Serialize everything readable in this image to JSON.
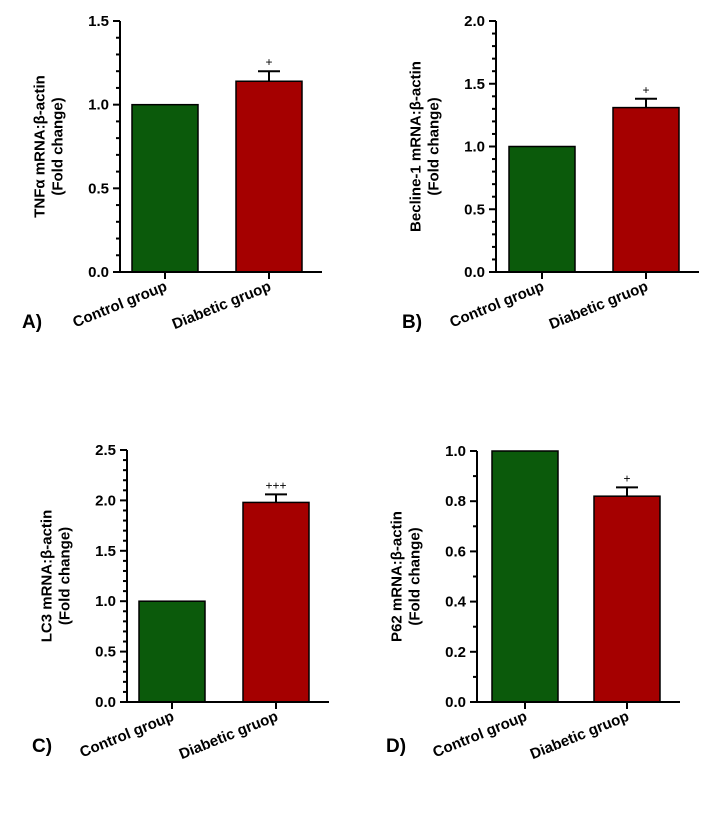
{
  "chart_data": [
    {
      "type": "bar",
      "panel": "A)",
      "categories": [
        "Control group",
        "Diabetic gruop"
      ],
      "values": [
        1.0,
        1.14
      ],
      "errors": [
        0,
        0.06
      ],
      "significance": [
        "",
        "+"
      ],
      "ylabel_line1": "TNFα mRNA:β-actin",
      "ylabel_line2": "(Fold change)",
      "ylim": [
        0,
        1.5
      ],
      "yticks": [
        0.0,
        0.5,
        1.0,
        1.5
      ],
      "ytick_labels": [
        "0.0",
        "0.5",
        "1.0",
        "1.5"
      ],
      "minor_per_major": 5,
      "colors": [
        "#0b5a0b",
        "#a50000"
      ]
    },
    {
      "type": "bar",
      "panel": "B)",
      "categories": [
        "Control group",
        "Diabetic gruop"
      ],
      "values": [
        1.0,
        1.31
      ],
      "errors": [
        0,
        0.07
      ],
      "significance": [
        "",
        "+"
      ],
      "ylabel_line1": "Becline-1 mRNA:β-actin",
      "ylabel_line2": "(Fold change)",
      "ylim": [
        0,
        2.0
      ],
      "yticks": [
        0.0,
        0.5,
        1.0,
        1.5,
        2.0
      ],
      "ytick_labels": [
        "0.0",
        "0.5",
        "1.0",
        "1.5",
        "2.0"
      ],
      "minor_per_major": 5,
      "colors": [
        "#0b5a0b",
        "#a50000"
      ]
    },
    {
      "type": "bar",
      "panel": "C)",
      "categories": [
        "Control group",
        "Diabetic gruop"
      ],
      "values": [
        1.0,
        1.98
      ],
      "errors": [
        0,
        0.08
      ],
      "significance": [
        "",
        "+++"
      ],
      "ylabel_line1": "LC3 mRNA:β-actin",
      "ylabel_line2": "(Fold change)",
      "ylim": [
        0,
        2.5
      ],
      "yticks": [
        0.0,
        0.5,
        1.0,
        1.5,
        2.0,
        2.5
      ],
      "ytick_labels": [
        "0.0",
        "0.5",
        "1.0",
        "1.5",
        "2.0",
        "2.5"
      ],
      "minor_per_major": 5,
      "colors": [
        "#0b5a0b",
        "#a50000"
      ]
    },
    {
      "type": "bar",
      "panel": "D)",
      "categories": [
        "Control group",
        "Diabetic gruop"
      ],
      "values": [
        1.0,
        0.82
      ],
      "errors": [
        0,
        0.035
      ],
      "significance": [
        "",
        "+"
      ],
      "ylabel_line1": "P62 mRNA:β-actin",
      "ylabel_line2": "(Fold change)",
      "ylim": [
        0,
        1.0
      ],
      "yticks": [
        0.0,
        0.2,
        0.4,
        0.6,
        0.8,
        1.0
      ],
      "ytick_labels": [
        "0.0",
        "0.2",
        "0.4",
        "0.6",
        "0.8",
        "1.0"
      ],
      "minor_per_major": 2,
      "colors": [
        "#0b5a0b",
        "#a50000"
      ]
    }
  ]
}
